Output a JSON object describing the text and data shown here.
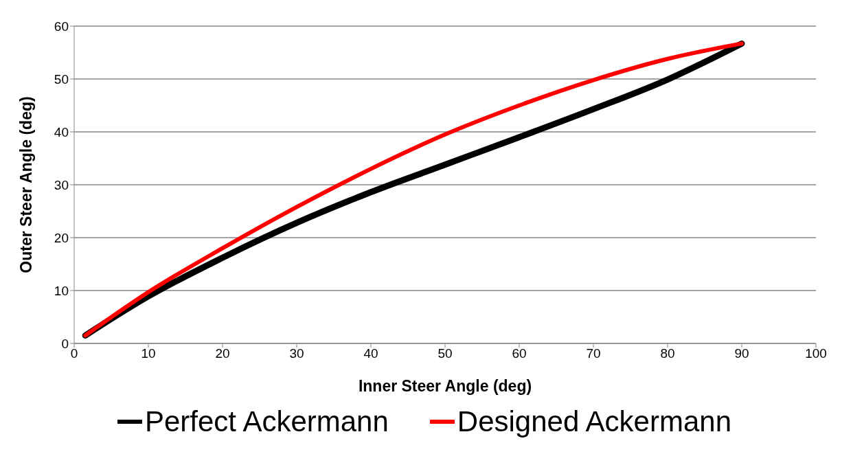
{
  "chart_data": {
    "type": "line",
    "xlabel": "Inner Steer Angle (deg)",
    "ylabel": "Outer Steer Angle (deg)",
    "series": [
      {
        "name": "Perfect Ackermann",
        "color": "#000000",
        "x": [
          1.5,
          10,
          20,
          30,
          40,
          50,
          60,
          70,
          80,
          90
        ],
        "values": [
          1.5,
          8.9,
          16.2,
          22.8,
          28.6,
          33.8,
          39,
          44.3,
          49.9,
          56.7
        ]
      },
      {
        "name": "Designed Ackermann",
        "color": "#ff0000",
        "x": [
          1.5,
          10,
          20,
          30,
          40,
          50,
          60,
          70,
          80,
          90
        ],
        "values": [
          1.5,
          9.7,
          18,
          25.8,
          33,
          39.5,
          45,
          49.8,
          53.8,
          56.7
        ]
      }
    ],
    "xlim": [
      0,
      100
    ],
    "xticks": [
      0,
      10,
      20,
      30,
      40,
      50,
      60,
      70,
      80,
      90,
      100
    ],
    "ylim": [
      0,
      60
    ],
    "yticks": [
      0,
      10,
      20,
      30,
      40,
      50,
      60
    ],
    "grid": "y",
    "legend": "bottom",
    "marker": "none",
    "line_style": "solid"
  }
}
